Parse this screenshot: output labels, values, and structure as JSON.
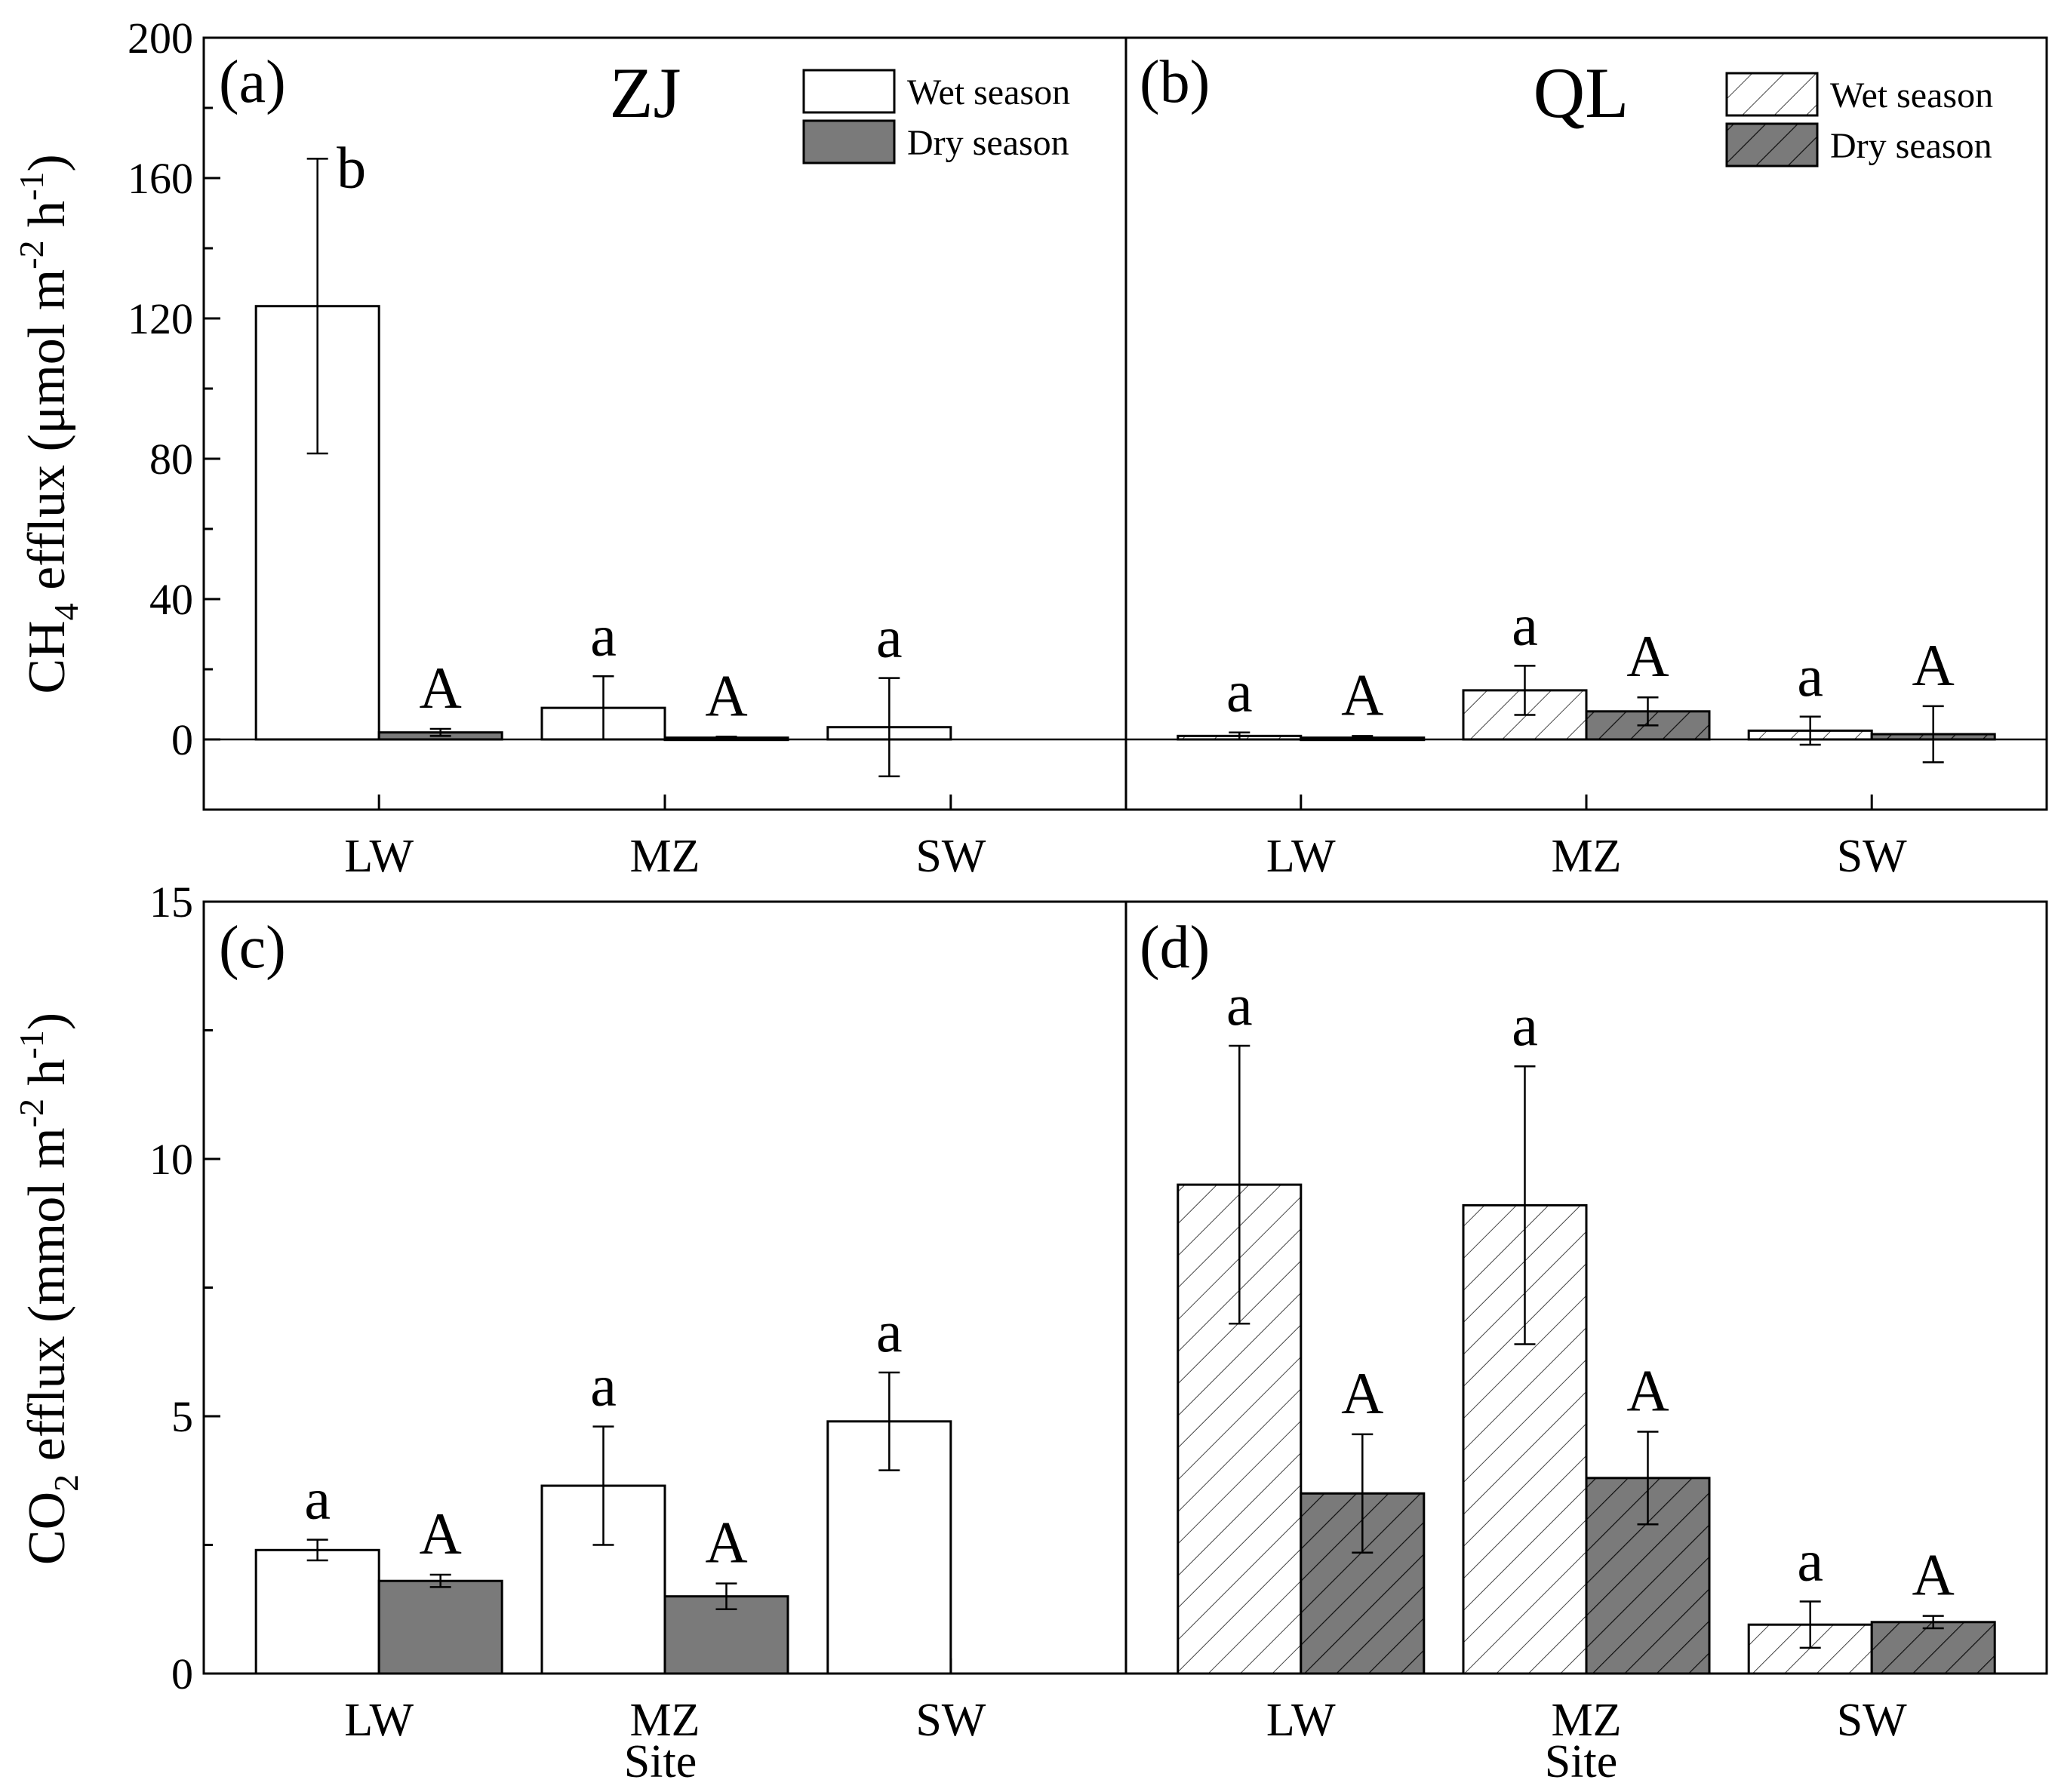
{
  "colors": {
    "wet_fill": "#ffffff",
    "dry_fill": "#7a7a7a",
    "stroke": "#000000",
    "hatch_light": "#444444",
    "hatch_dark": "#111111"
  },
  "chart_data": [
    {
      "id": "panel-a",
      "type": "bar",
      "panel_label": "(a)",
      "title": "ZJ",
      "ylabel_main": "CH",
      "ylabel_sub": "4",
      "ylabel_rest": " efflux (μmol m",
      "ylabel_sup1": "-2",
      "ylabel_mid": " h",
      "ylabel_sup2": "-1",
      "ylabel_end": ")",
      "xlabel": "",
      "ylim": [
        -20,
        200
      ],
      "yticks": [
        0,
        40,
        80,
        120,
        160,
        200
      ],
      "hatched": false,
      "categories": [
        "LW",
        "MZ",
        "SW"
      ],
      "series": [
        {
          "name": "Wet season",
          "values": [
            123.5,
            9.0,
            3.5
          ],
          "errors": [
            42,
            9,
            14
          ],
          "letters": [
            "b",
            "a",
            "a"
          ]
        },
        {
          "name": "Dry season",
          "values": [
            2.0,
            0.5,
            null
          ],
          "errors": [
            1,
            0.3,
            null
          ],
          "letters": [
            "A",
            "A",
            ""
          ]
        }
      ],
      "legend": [
        "Wet season",
        "Dry season"
      ]
    },
    {
      "id": "panel-b",
      "type": "bar",
      "panel_label": "(b)",
      "title": "QL",
      "xlabel": "",
      "ylim": [
        -20,
        200
      ],
      "yticks": [
        0,
        40,
        80,
        120,
        160,
        200
      ],
      "hatched": true,
      "categories": [
        "LW",
        "MZ",
        "SW"
      ],
      "series": [
        {
          "name": "Wet season",
          "values": [
            1.0,
            14.0,
            2.5
          ],
          "errors": [
            1.0,
            7,
            4
          ],
          "letters": [
            "a",
            "a",
            "a"
          ]
        },
        {
          "name": "Dry season",
          "values": [
            0.5,
            8.0,
            1.5
          ],
          "errors": [
            0.5,
            4,
            8
          ],
          "letters": [
            "A",
            "A",
            "A"
          ]
        }
      ],
      "legend": [
        "Wet season",
        "Dry season"
      ]
    },
    {
      "id": "panel-c",
      "type": "bar",
      "panel_label": "(c)",
      "title": "",
      "ylabel_main": "CO",
      "ylabel_sub": "2",
      "ylabel_rest": " efflux (mmol m",
      "ylabel_sup1": "-2",
      "ylabel_mid": " h",
      "ylabel_sup2": "-1",
      "ylabel_end": ")",
      "xlabel": "Site",
      "ylim": [
        0,
        15
      ],
      "yticks": [
        0,
        5,
        10,
        15
      ],
      "hatched": false,
      "categories": [
        "LW",
        "MZ",
        "SW"
      ],
      "series": [
        {
          "name": "Wet season",
          "values": [
            2.4,
            3.65,
            4.9
          ],
          "errors": [
            0.2,
            1.15,
            0.95
          ],
          "letters": [
            "a",
            "a",
            "a"
          ]
        },
        {
          "name": "Dry season",
          "values": [
            1.8,
            1.5,
            null
          ],
          "errors": [
            0.12,
            0.25,
            null
          ],
          "letters": [
            "A",
            "A",
            ""
          ]
        }
      ]
    },
    {
      "id": "panel-d",
      "type": "bar",
      "panel_label": "(d)",
      "title": "",
      "xlabel": "Site",
      "ylim": [
        0,
        15
      ],
      "yticks": [
        0,
        5,
        10,
        15
      ],
      "hatched": true,
      "categories": [
        "LW",
        "MZ",
        "SW"
      ],
      "series": [
        {
          "name": "Wet season",
          "values": [
            9.5,
            9.1,
            0.95
          ],
          "errors": [
            2.7,
            2.7,
            0.45
          ],
          "letters": [
            "a",
            "a",
            "a"
          ]
        },
        {
          "name": "Dry season",
          "values": [
            3.5,
            3.8,
            1.0
          ],
          "errors": [
            1.15,
            0.9,
            0.12
          ],
          "letters": [
            "A",
            "A",
            "A"
          ]
        }
      ]
    }
  ]
}
